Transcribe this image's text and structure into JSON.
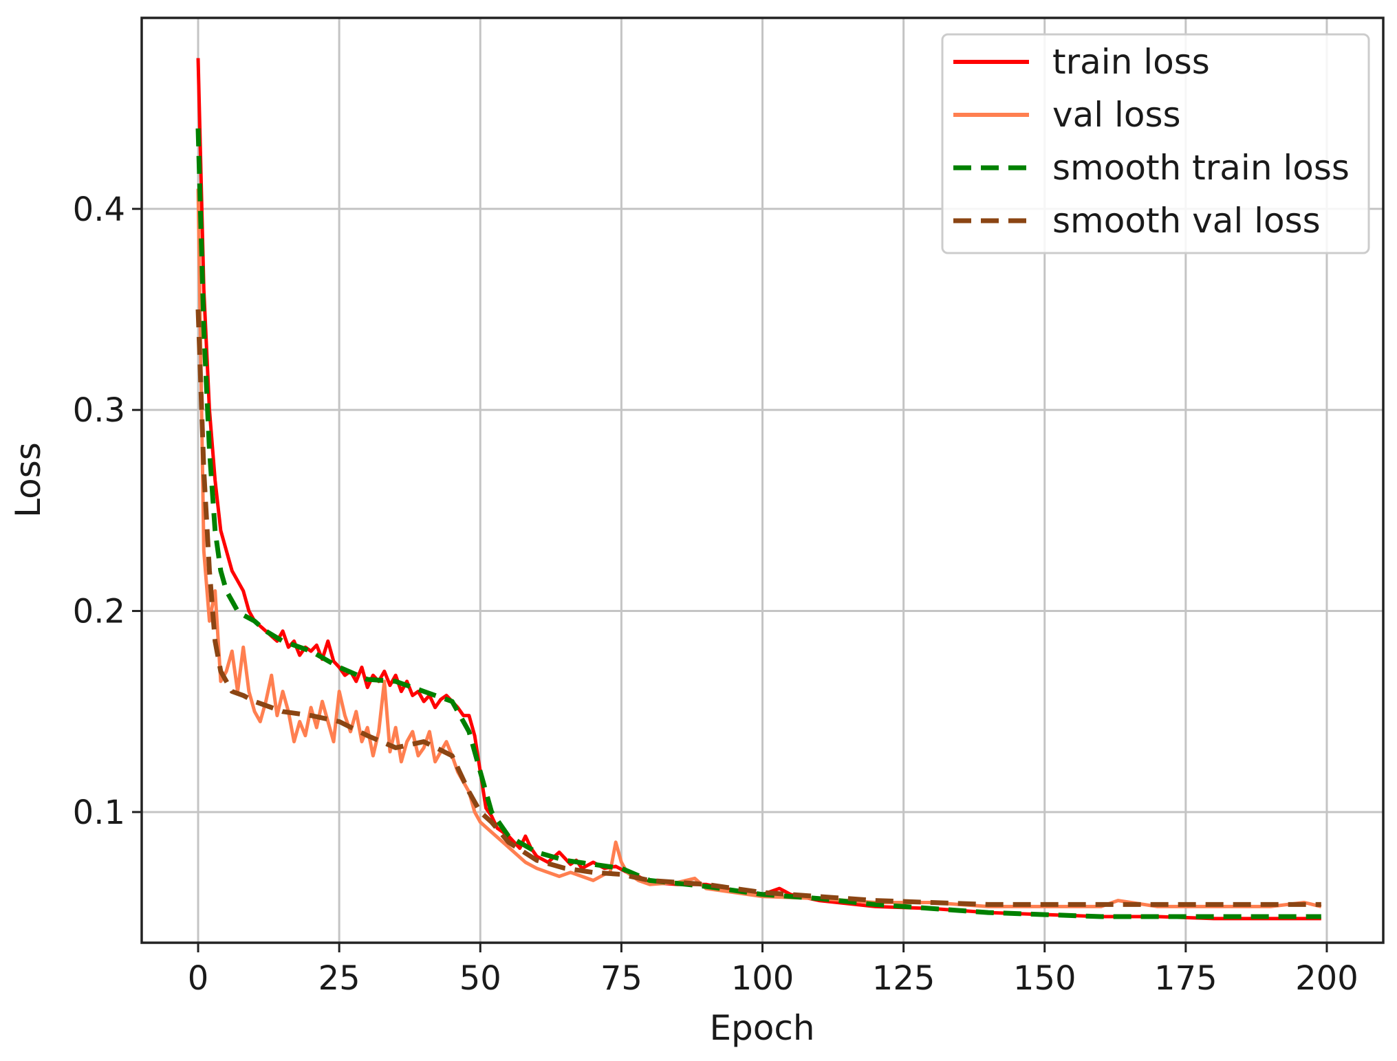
{
  "chart_data": {
    "type": "line",
    "title": "",
    "xlabel": "Epoch",
    "ylabel": "Loss",
    "xlim": [
      -10,
      210
    ],
    "ylim": [
      0.035,
      0.495
    ],
    "xticks": [
      0,
      25,
      50,
      75,
      100,
      125,
      150,
      175,
      200
    ],
    "yticks": [
      0.1,
      0.2,
      0.3,
      0.4
    ],
    "ytick_labels": [
      "0.1",
      "0.2",
      "0.3",
      "0.4"
    ],
    "grid": true,
    "legend_position": "top-right",
    "series": [
      {
        "name": "train loss",
        "color": "#ff0000",
        "style": "solid",
        "x": [
          0,
          1,
          2,
          3,
          4,
          5,
          6,
          7,
          8,
          9,
          10,
          12,
          14,
          15,
          16,
          17,
          18,
          19,
          20,
          21,
          22,
          23,
          24,
          25,
          26,
          27,
          28,
          29,
          30,
          31,
          32,
          33,
          34,
          35,
          36,
          37,
          38,
          39,
          40,
          41,
          42,
          43,
          44,
          45,
          46,
          47,
          48,
          49,
          50,
          51,
          52,
          53,
          55,
          57,
          58,
          59,
          60,
          62,
          64,
          66,
          67,
          68,
          70,
          72,
          74,
          76,
          78,
          80,
          85,
          90,
          95,
          100,
          103,
          105,
          110,
          120,
          130,
          140,
          150,
          160,
          170,
          180,
          190,
          199
        ],
        "y": [
          0.475,
          0.36,
          0.3,
          0.265,
          0.24,
          0.23,
          0.22,
          0.215,
          0.21,
          0.2,
          0.195,
          0.19,
          0.185,
          0.19,
          0.182,
          0.185,
          0.178,
          0.182,
          0.18,
          0.183,
          0.176,
          0.185,
          0.175,
          0.172,
          0.168,
          0.17,
          0.165,
          0.172,
          0.162,
          0.168,
          0.165,
          0.17,
          0.163,
          0.168,
          0.16,
          0.165,
          0.158,
          0.16,
          0.155,
          0.158,
          0.152,
          0.156,
          0.158,
          0.155,
          0.152,
          0.148,
          0.148,
          0.138,
          0.12,
          0.102,
          0.098,
          0.092,
          0.088,
          0.082,
          0.088,
          0.082,
          0.078,
          0.075,
          0.08,
          0.074,
          0.076,
          0.072,
          0.075,
          0.072,
          0.073,
          0.07,
          0.068,
          0.065,
          0.064,
          0.064,
          0.061,
          0.059,
          0.062,
          0.059,
          0.056,
          0.053,
          0.052,
          0.05,
          0.049,
          0.048,
          0.048,
          0.047,
          0.047,
          0.047
        ]
      },
      {
        "name": "val loss",
        "color": "#ff7f50",
        "style": "solid",
        "x": [
          0,
          1,
          2,
          3,
          4,
          5,
          6,
          7,
          8,
          9,
          10,
          11,
          12,
          13,
          14,
          15,
          16,
          17,
          18,
          19,
          20,
          21,
          22,
          23,
          24,
          25,
          26,
          27,
          28,
          29,
          30,
          31,
          32,
          33,
          34,
          35,
          36,
          37,
          38,
          39,
          40,
          41,
          42,
          43,
          44,
          45,
          46,
          47,
          48,
          49,
          50,
          52,
          54,
          56,
          58,
          60,
          62,
          64,
          66,
          68,
          70,
          72,
          73,
          74,
          75,
          76,
          78,
          80,
          85,
          88,
          90,
          95,
          100,
          110,
          120,
          130,
          140,
          150,
          160,
          163,
          170,
          180,
          190,
          196,
          199
        ],
        "y": [
          0.41,
          0.23,
          0.195,
          0.21,
          0.165,
          0.17,
          0.18,
          0.16,
          0.182,
          0.16,
          0.15,
          0.145,
          0.155,
          0.168,
          0.148,
          0.16,
          0.15,
          0.135,
          0.145,
          0.138,
          0.152,
          0.142,
          0.155,
          0.145,
          0.135,
          0.16,
          0.148,
          0.14,
          0.15,
          0.135,
          0.142,
          0.128,
          0.14,
          0.165,
          0.13,
          0.142,
          0.125,
          0.135,
          0.14,
          0.128,
          0.132,
          0.14,
          0.125,
          0.13,
          0.135,
          0.128,
          0.12,
          0.115,
          0.11,
          0.1,
          0.095,
          0.09,
          0.085,
          0.08,
          0.075,
          0.072,
          0.07,
          0.068,
          0.07,
          0.068,
          0.066,
          0.069,
          0.07,
          0.085,
          0.075,
          0.07,
          0.066,
          0.064,
          0.065,
          0.067,
          0.062,
          0.06,
          0.058,
          0.057,
          0.055,
          0.055,
          0.053,
          0.053,
          0.053,
          0.056,
          0.053,
          0.053,
          0.053,
          0.055,
          0.053
        ]
      },
      {
        "name": "smooth train loss",
        "color": "#008000",
        "style": "dashed",
        "x": [
          0,
          1,
          2,
          3,
          4,
          5,
          6,
          7,
          8,
          10,
          12,
          15,
          20,
          25,
          30,
          35,
          40,
          45,
          48,
          50,
          52,
          55,
          60,
          65,
          70,
          75,
          80,
          90,
          100,
          110,
          120,
          130,
          140,
          150,
          160,
          170,
          180,
          190,
          199
        ],
        "y": [
          0.44,
          0.34,
          0.28,
          0.24,
          0.22,
          0.21,
          0.205,
          0.2,
          0.198,
          0.195,
          0.19,
          0.185,
          0.18,
          0.172,
          0.166,
          0.165,
          0.16,
          0.155,
          0.14,
          0.12,
          0.1,
          0.088,
          0.08,
          0.076,
          0.074,
          0.072,
          0.066,
          0.063,
          0.059,
          0.057,
          0.054,
          0.052,
          0.05,
          0.049,
          0.048,
          0.048,
          0.048,
          0.048,
          0.048
        ]
      },
      {
        "name": "smooth val loss",
        "color": "#8b4513",
        "style": "dashed",
        "x": [
          0,
          1,
          2,
          3,
          4,
          5,
          6,
          8,
          10,
          15,
          20,
          25,
          30,
          35,
          40,
          45,
          48,
          50,
          52,
          55,
          60,
          65,
          70,
          75,
          80,
          90,
          100,
          110,
          120,
          130,
          140,
          150,
          160,
          170,
          180,
          190,
          199
        ],
        "y": [
          0.35,
          0.27,
          0.22,
          0.185,
          0.17,
          0.165,
          0.16,
          0.158,
          0.155,
          0.15,
          0.148,
          0.145,
          0.138,
          0.132,
          0.135,
          0.128,
          0.11,
          0.1,
          0.095,
          0.085,
          0.076,
          0.072,
          0.07,
          0.069,
          0.066,
          0.064,
          0.06,
          0.058,
          0.056,
          0.055,
          0.054,
          0.054,
          0.054,
          0.054,
          0.054,
          0.054,
          0.054
        ]
      }
    ]
  }
}
